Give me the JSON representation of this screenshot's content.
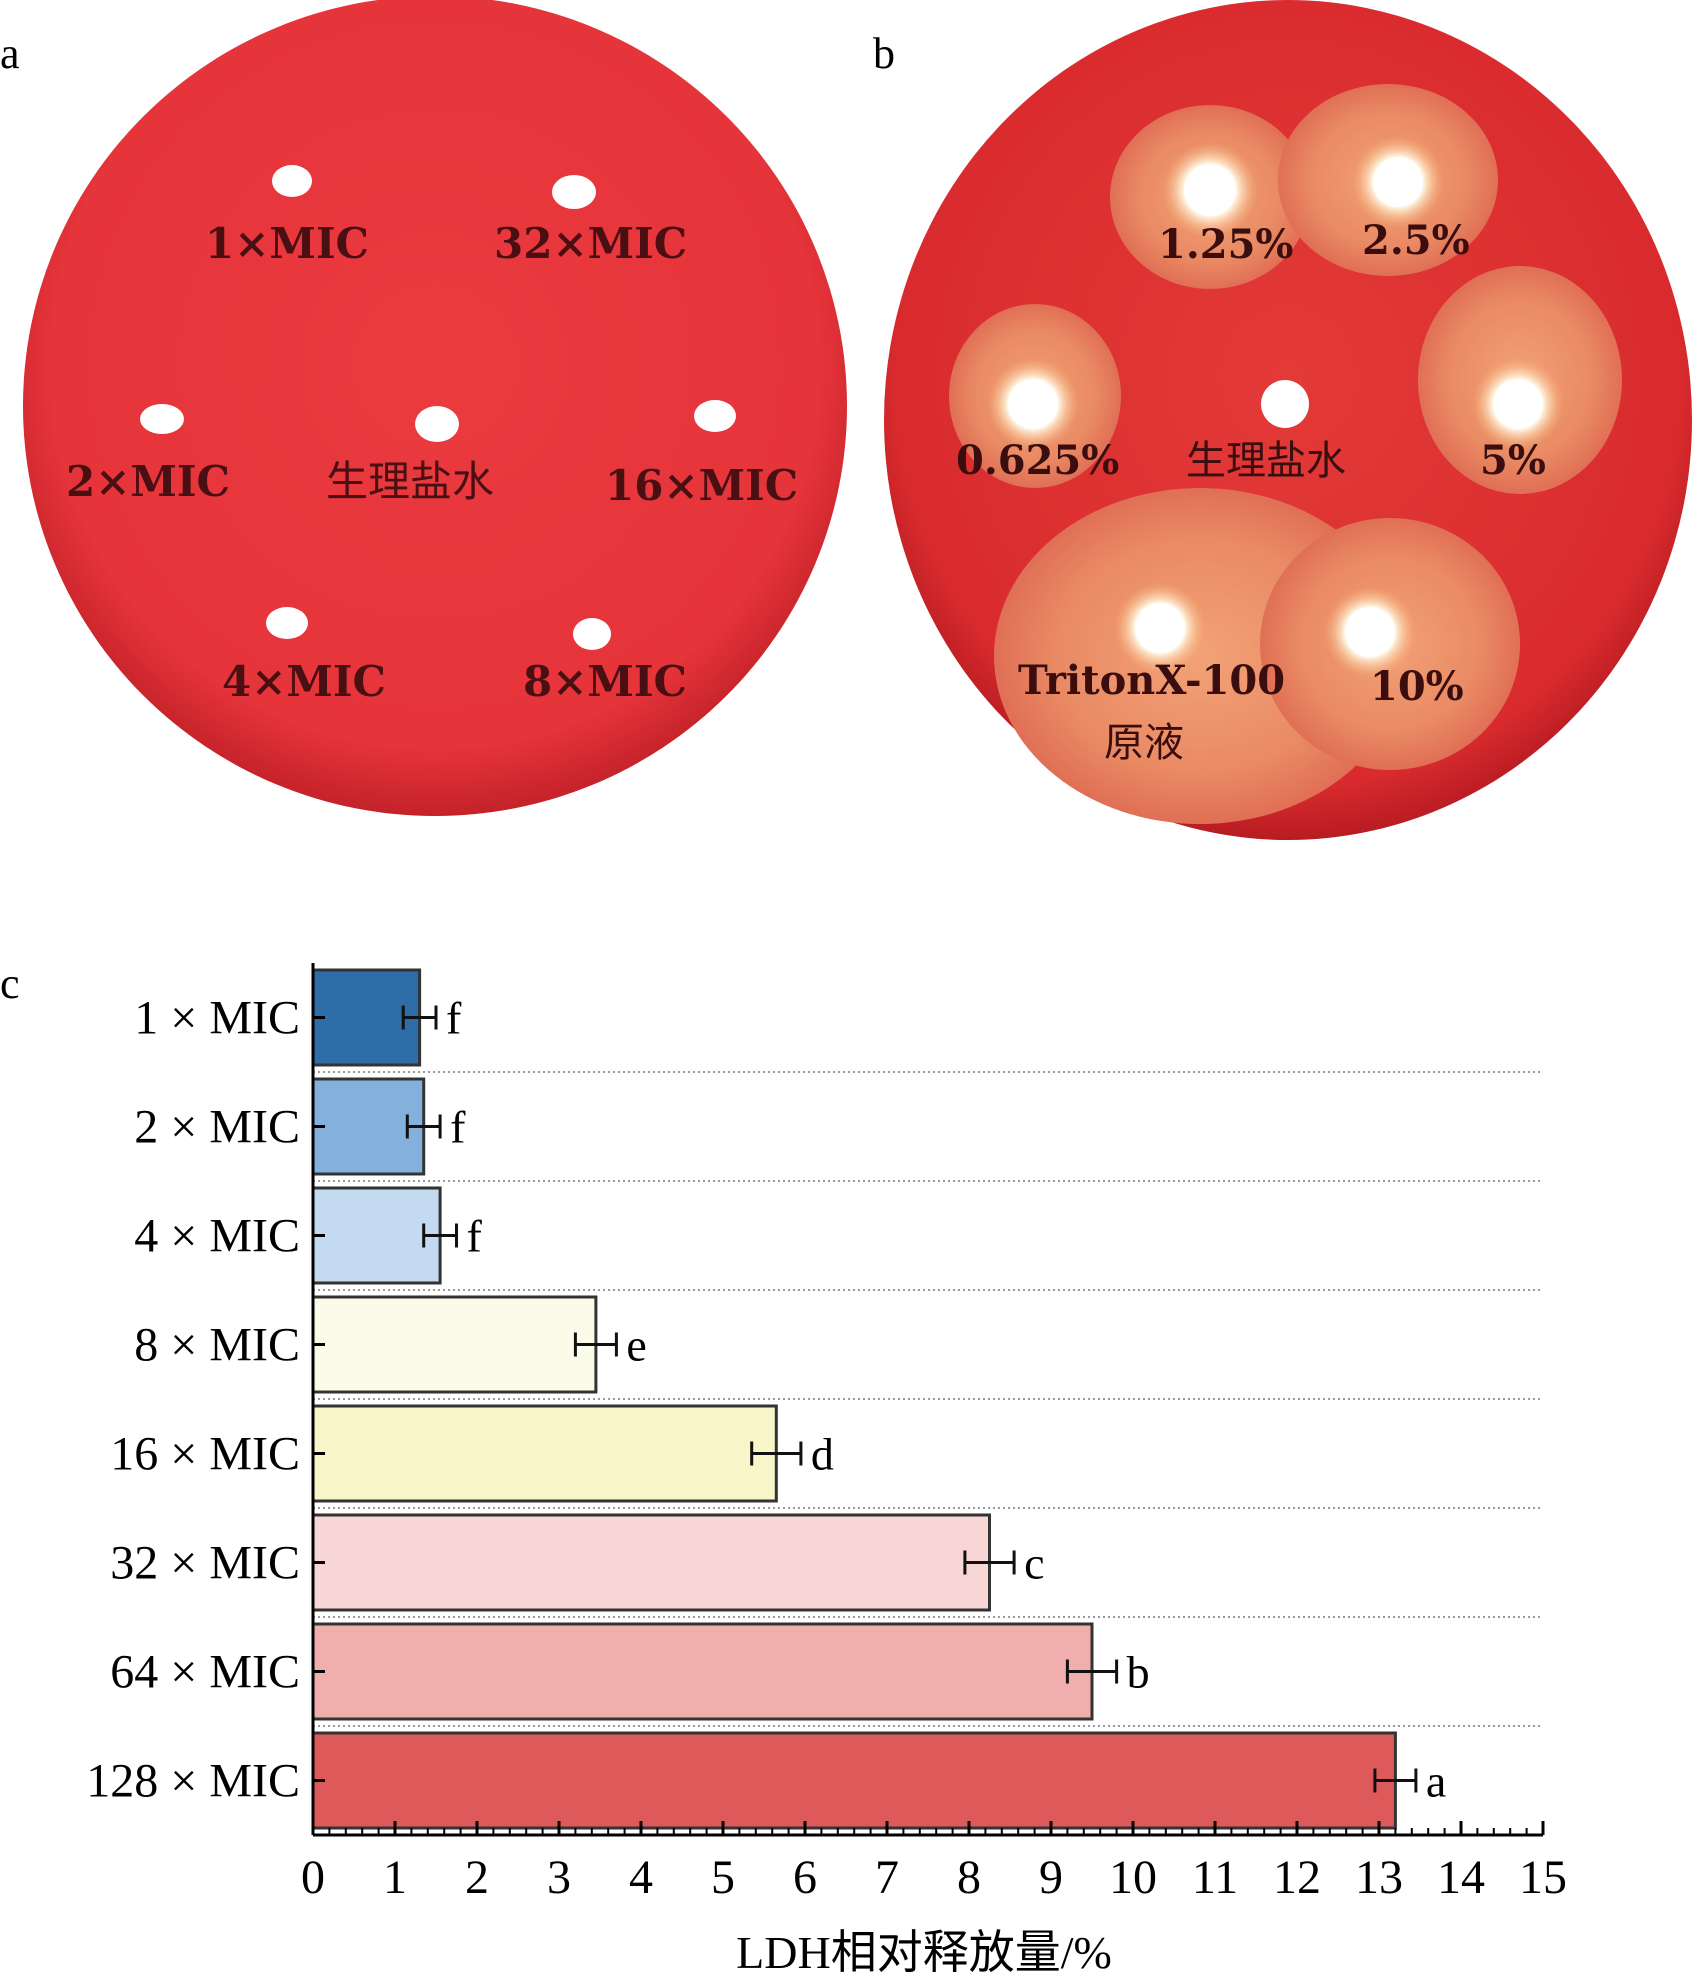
{
  "panels": {
    "a": {
      "letter": "a",
      "labels": [
        "1×MIC",
        "32×MIC",
        "2×MIC",
        "生理盐水",
        "16×MIC",
        "4×MIC",
        "8×MIC"
      ]
    },
    "b": {
      "letter": "b",
      "labels": [
        "1.25%",
        "2.5%",
        "0.625%",
        "生理盐水",
        "5%",
        "TritonX-100",
        "原液",
        "10%"
      ]
    },
    "c": {
      "letter": "c"
    }
  },
  "colors": {
    "agar": "#e8353a",
    "agar_edge": "#c9232a",
    "halo": "#e8825e",
    "well": "#ffffff",
    "text_dark": "#3a0d0f"
  },
  "chart_data": {
    "type": "bar",
    "orientation": "horizontal",
    "categories": [
      "1 × MIC",
      "2 × MIC",
      "4 × MIC",
      "8 × MIC",
      "16 × MIC",
      "32 × MIC",
      "64 × MIC",
      "128 × MIC"
    ],
    "values": [
      1.3,
      1.35,
      1.55,
      3.45,
      5.65,
      8.25,
      9.5,
      13.2
    ],
    "errors": [
      0.2,
      0.2,
      0.2,
      0.25,
      0.3,
      0.3,
      0.3,
      0.25
    ],
    "significance": [
      "f",
      "f",
      "f",
      "e",
      "d",
      "c",
      "b",
      "a"
    ],
    "bar_colors": [
      "#2e6da8",
      "#84b0dc",
      "#c4daf0",
      "#fbfbe9",
      "#f8f6c8",
      "#f7d6d5",
      "#f0aeac",
      "#de5a5a"
    ],
    "xlabel": "LDH相对释放量/%",
    "xlim": [
      0,
      15
    ],
    "xticks": [
      "0",
      "1",
      "2",
      "3",
      "4",
      "5",
      "6",
      "7",
      "8",
      "9",
      "10",
      "11",
      "12",
      "13",
      "14",
      "15"
    ],
    "grid": "horizontal dotted"
  }
}
